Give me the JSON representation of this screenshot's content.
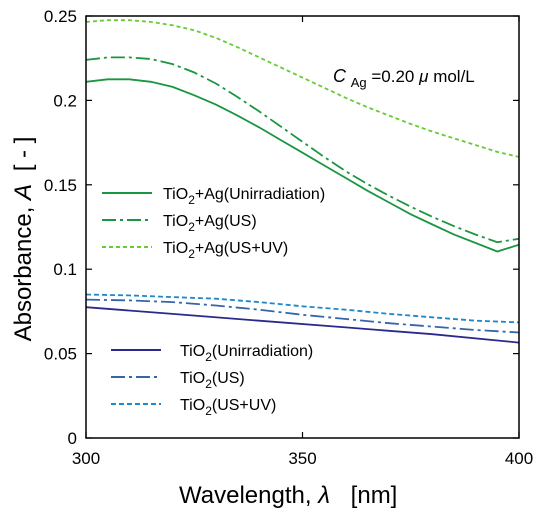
{
  "chart_data": {
    "type": "line",
    "xlabel": {
      "prefix": "Wavelength, ",
      "symbol": "λ",
      "unit": "[nm]"
    },
    "ylabel": {
      "prefix": "Absorbance, ",
      "symbol": "A",
      "unit": "[ - ]"
    },
    "xlim": [
      300,
      400
    ],
    "ylim": [
      0,
      0.25
    ],
    "x_ticks": [
      300,
      350,
      400
    ],
    "x_tick_labels": [
      "300",
      "350",
      "400"
    ],
    "y_ticks": [
      0,
      0.05,
      0.1,
      0.15,
      0.2,
      0.25
    ],
    "y_tick_labels": [
      "0",
      "0.05",
      "0.1",
      "0.15",
      "0.2",
      "0.25"
    ],
    "annotation": {
      "italic": "C",
      "subscript": "Ag",
      "rest": "=0.20",
      "mu": "μ",
      "unit": " mol/L"
    },
    "legend_groups": [
      {
        "entries": [
          {
            "series": 0,
            "parts": [
              "TiO",
              "2",
              "+Ag(Unirradiation)"
            ]
          },
          {
            "series": 1,
            "parts": [
              "TiO",
              "2",
              "+Ag(US)"
            ]
          },
          {
            "series": 2,
            "parts": [
              "TiO",
              "2",
              "+Ag(US+UV)"
            ]
          }
        ]
      },
      {
        "entries": [
          {
            "series": 3,
            "parts": [
              "TiO",
              "2",
              "(Unirradiation)"
            ]
          },
          {
            "series": 4,
            "parts": [
              "TiO",
              "2",
              "(US)"
            ]
          },
          {
            "series": 5,
            "parts": [
              "TiO",
              "2",
              "(US+UV)"
            ]
          }
        ]
      }
    ],
    "series": [
      {
        "color": "#1a9641",
        "dash": "solid",
        "x": [
          300,
          305,
          310,
          315,
          320,
          325,
          330,
          335,
          340,
          345,
          350,
          355,
          360,
          365,
          370,
          375,
          380,
          385,
          390,
          395,
          400
        ],
        "y": [
          0.211,
          0.2125,
          0.2125,
          0.211,
          0.208,
          0.203,
          0.1975,
          0.191,
          0.184,
          0.1765,
          0.169,
          0.1615,
          0.154,
          0.1465,
          0.1395,
          0.1325,
          0.1265,
          0.1205,
          0.1155,
          0.1105,
          0.1145
        ]
      },
      {
        "color": "#1a9641",
        "dash": "dashdot",
        "x": [
          300,
          305,
          310,
          315,
          320,
          325,
          330,
          335,
          340,
          345,
          350,
          355,
          360,
          365,
          370,
          375,
          380,
          385,
          390,
          395,
          400
        ],
        "y": [
          0.224,
          0.2255,
          0.2255,
          0.2245,
          0.2215,
          0.2165,
          0.21,
          0.202,
          0.1935,
          0.1845,
          0.1755,
          0.1665,
          0.158,
          0.1505,
          0.1435,
          0.137,
          0.131,
          0.1255,
          0.1205,
          0.116,
          0.118
        ]
      },
      {
        "color": "#66cc33",
        "dash": "dashed",
        "x": [
          300,
          305,
          310,
          315,
          320,
          325,
          330,
          335,
          340,
          345,
          350,
          355,
          360,
          365,
          370,
          375,
          380,
          385,
          390,
          395,
          400
        ],
        "y": [
          0.2465,
          0.2475,
          0.2475,
          0.2465,
          0.2445,
          0.2415,
          0.237,
          0.2315,
          0.2255,
          0.2195,
          0.2135,
          0.2075,
          0.2015,
          0.196,
          0.191,
          0.186,
          0.1815,
          0.1775,
          0.1735,
          0.1695,
          0.1665
        ]
      },
      {
        "color": "#2b2a8c",
        "dash": "solid",
        "x": [
          300,
          320,
          340,
          360,
          380,
          400
        ],
        "y": [
          0.0775,
          0.0735,
          0.0695,
          0.0655,
          0.0615,
          0.0565
        ]
      },
      {
        "color": "#3366aa",
        "dash": "dashdot",
        "x": [
          300,
          310,
          320,
          330,
          340,
          350,
          360,
          370,
          380,
          390,
          400
        ],
        "y": [
          0.082,
          0.0815,
          0.0805,
          0.0785,
          0.076,
          0.073,
          0.0705,
          0.068,
          0.066,
          0.064,
          0.0625
        ]
      },
      {
        "color": "#1e88c8",
        "dash": "dotted",
        "x": [
          300,
          310,
          320,
          330,
          340,
          350,
          360,
          370,
          380,
          390,
          400
        ],
        "y": [
          0.085,
          0.0845,
          0.0835,
          0.0825,
          0.0805,
          0.078,
          0.076,
          0.0735,
          0.0715,
          0.0695,
          0.0685
        ]
      }
    ]
  }
}
